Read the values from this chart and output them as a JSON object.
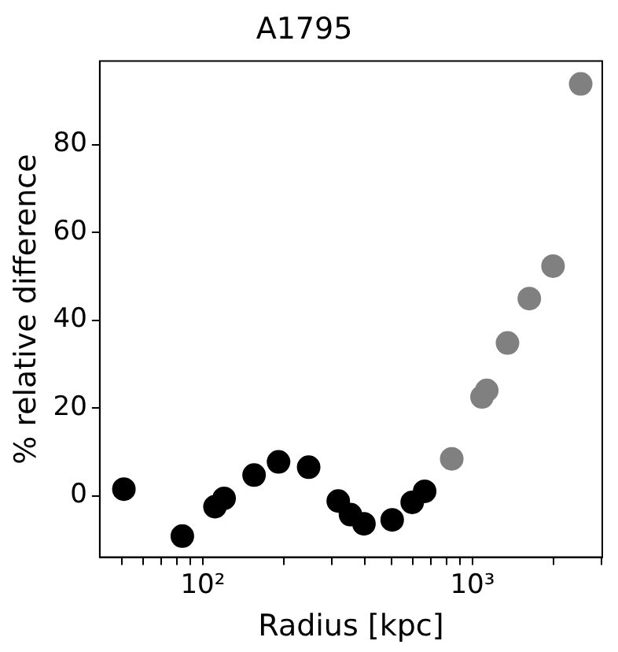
{
  "chart_data": {
    "type": "scatter",
    "title": "A1795",
    "xlabel": "Radius [kpc]",
    "ylabel": "% relative difference",
    "log": "x",
    "grid": false,
    "legend": false,
    "marker": "circle",
    "xlim": [
      41.5,
      3030
    ],
    "xticks": [
      {
        "value": 50,
        "label": null
      },
      {
        "value": 60,
        "label": null
      },
      {
        "value": 70,
        "label": null
      },
      {
        "value": 80,
        "label": null
      },
      {
        "value": 90,
        "label": null
      },
      {
        "value": 100,
        "label": "10²"
      },
      {
        "value": 200,
        "label": null
      },
      {
        "value": 300,
        "label": null
      },
      {
        "value": 400,
        "label": null
      },
      {
        "value": 500,
        "label": null
      },
      {
        "value": 600,
        "label": null
      },
      {
        "value": 700,
        "label": null
      },
      {
        "value": 800,
        "label": null
      },
      {
        "value": 900,
        "label": null
      },
      {
        "value": 1000,
        "label": "10³"
      },
      {
        "value": 2000,
        "label": null
      },
      {
        "value": 3000,
        "label": null
      }
    ],
    "ylim": [
      -14,
      99
    ],
    "yticks": [
      0,
      20,
      40,
      60,
      80
    ],
    "series": [
      {
        "color": "#000000",
        "x": [
          51,
          84,
          111,
          120,
          155,
          191,
          247,
          318,
          353,
          396,
          504,
          598,
          665
        ],
        "values": [
          1.5,
          -9.2,
          -2.5,
          -0.6,
          4.7,
          7.7,
          6.5,
          -1.2,
          -4.3,
          -6.4,
          -5.5,
          -1.5,
          1.0
        ]
      },
      {
        "color": "#808080",
        "x": [
          838,
          1085,
          1130,
          1349,
          1625,
          1990,
          2520
        ],
        "values": [
          8.4,
          22.5,
          24,
          34.8,
          44.9,
          52.3,
          93.8
        ]
      }
    ]
  }
}
